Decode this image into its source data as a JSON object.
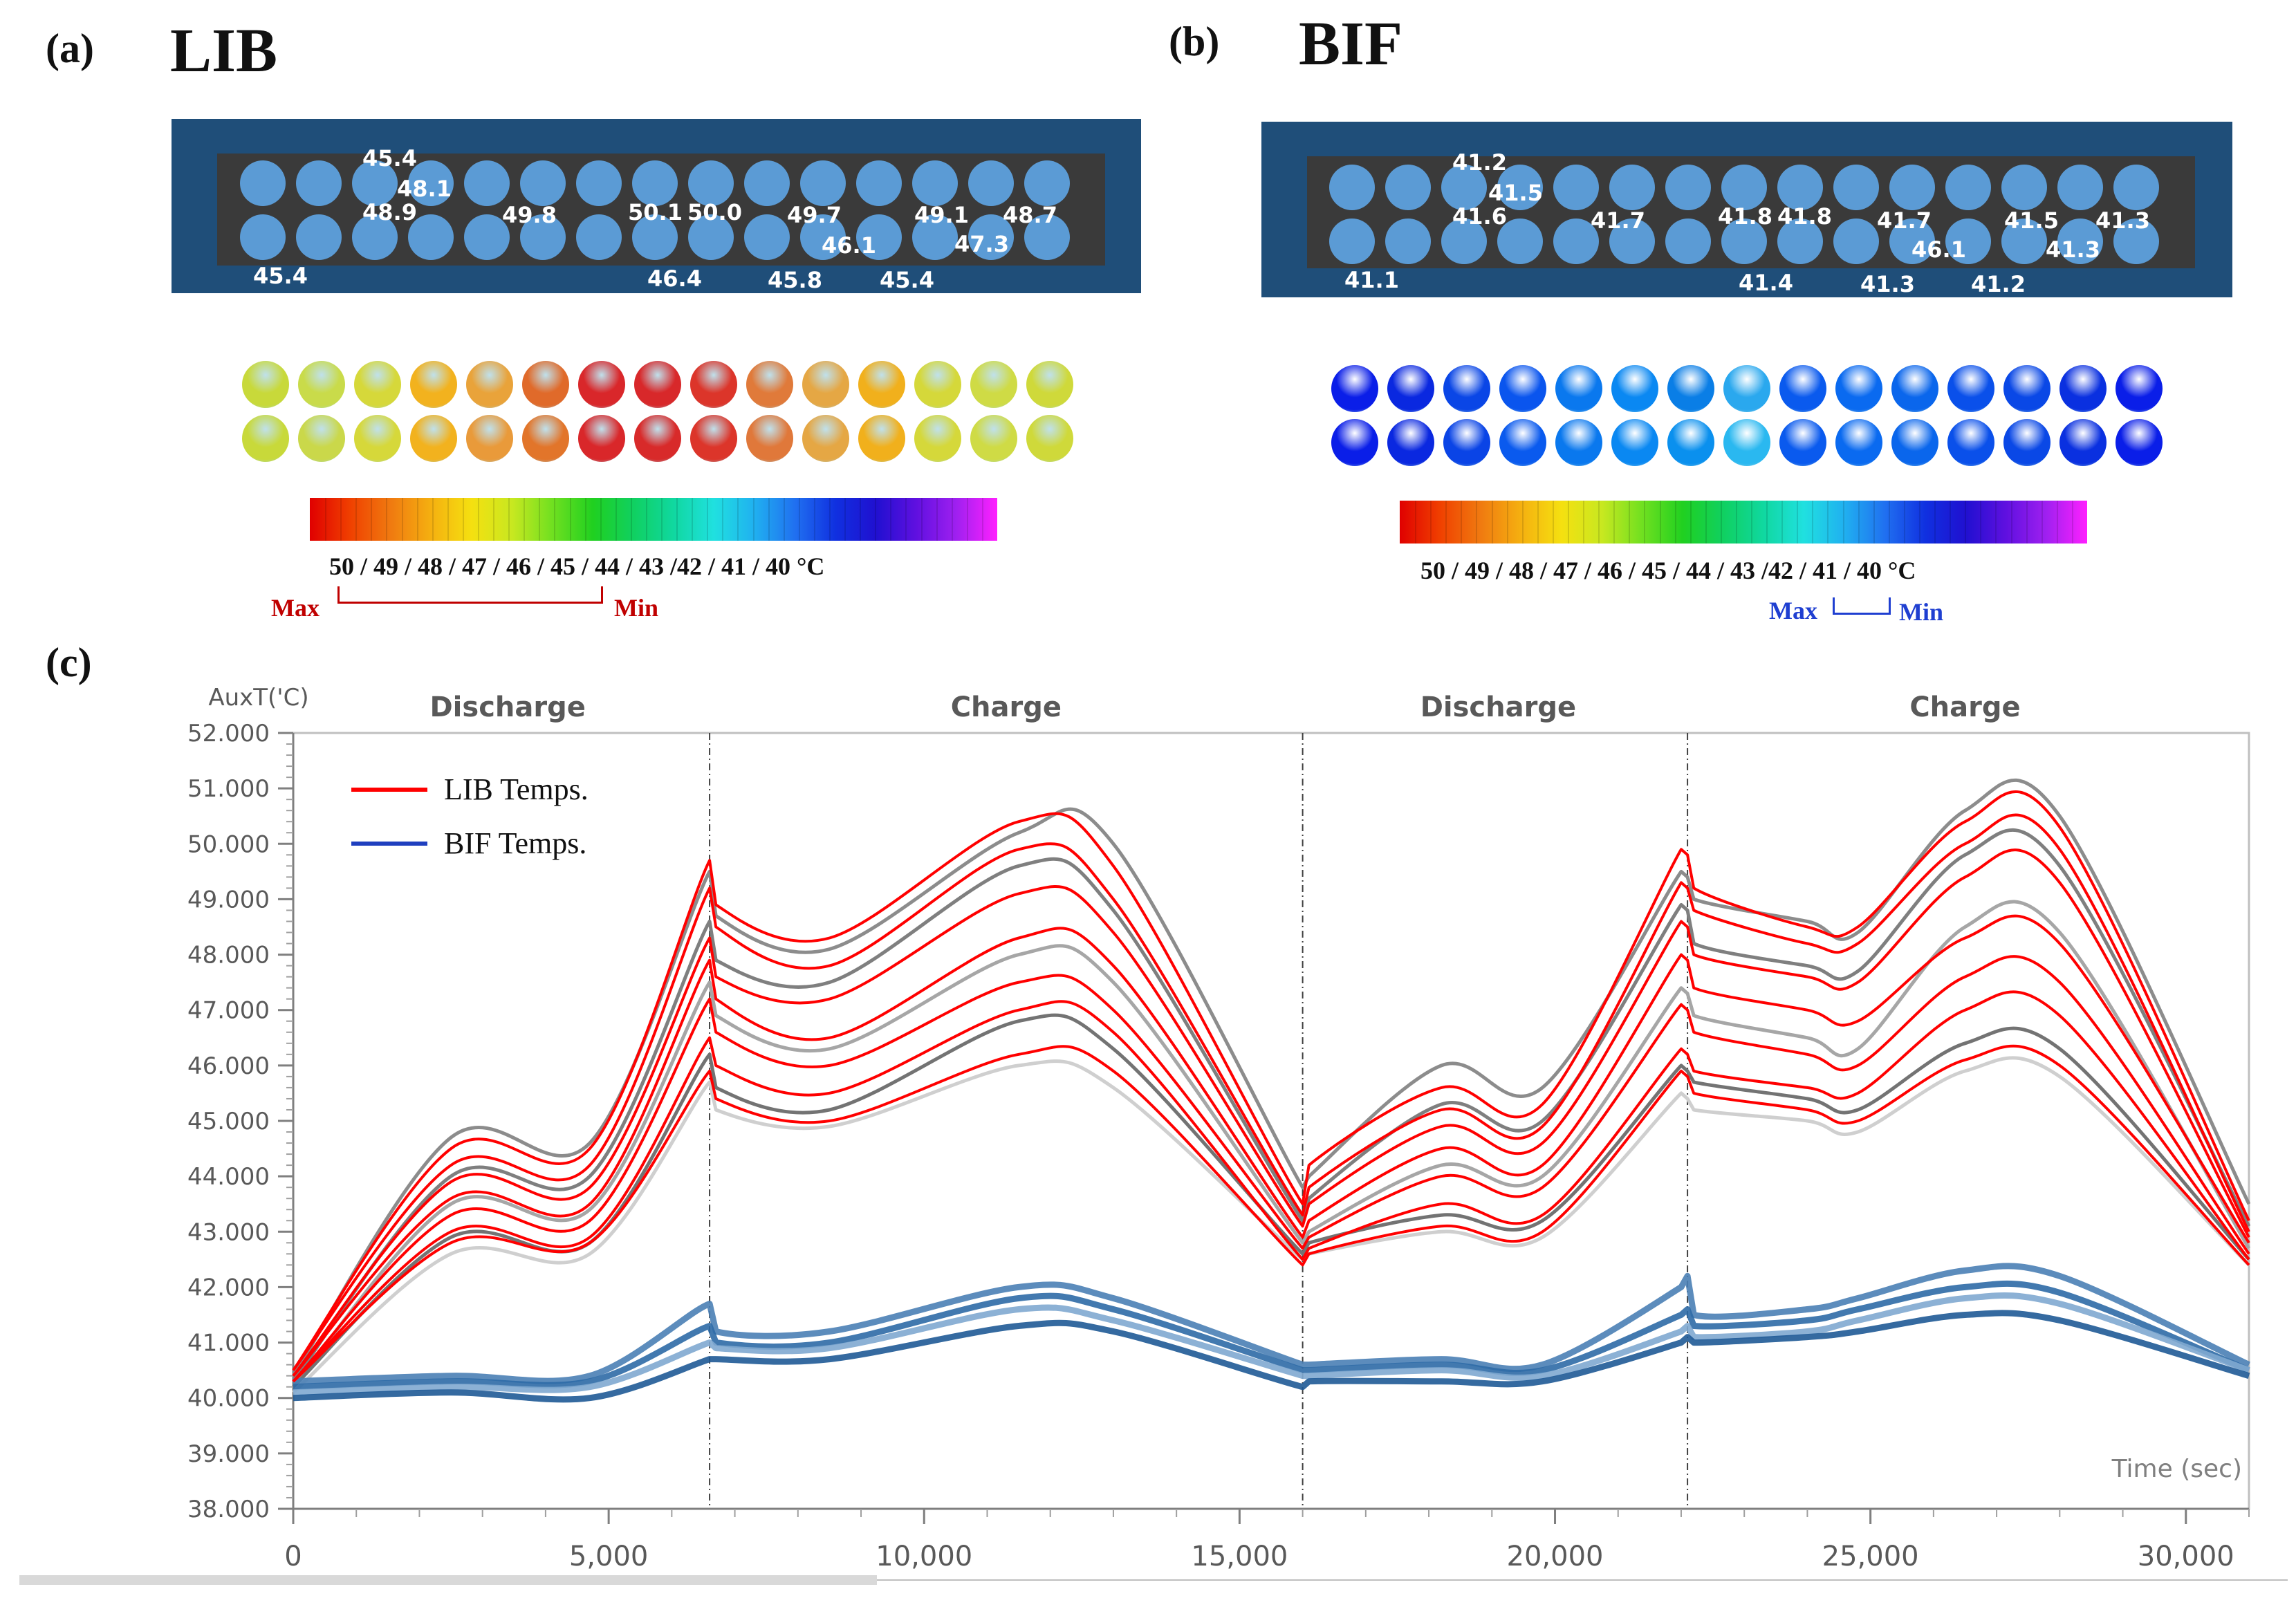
{
  "panel_a": {
    "label": "(a)",
    "title": "LIB",
    "cell_labels": [
      "45.4",
      "48.1",
      "48.9",
      "49.8",
      "50.1",
      "50.0",
      "49.7",
      "46.1",
      "49.1",
      "47.3",
      "48.7",
      "45.4",
      "46.4",
      "45.8",
      "45.4"
    ],
    "sim_colors_row1": [
      "#c8d93a",
      "#c9db4a",
      "#d6d83a",
      "#f2b21e",
      "#e9a33a",
      "#e06a2a",
      "#d9272a",
      "#d8282a",
      "#dc352a",
      "#e07a3a",
      "#e5a744",
      "#f1b01c",
      "#d5d83a",
      "#cfdb45",
      "#cfd93a"
    ],
    "sim_colors_row2": [
      "#c8d93a",
      "#cad84a",
      "#d6d83a",
      "#f2b21e",
      "#e99a3a",
      "#e2752a",
      "#d9272a",
      "#d82a2a",
      "#dc352a",
      "#e0783a",
      "#e5a744",
      "#f1b01c",
      "#d5d83a",
      "#cfdb45",
      "#cfd93a"
    ],
    "scale": "50 / 49 / 48 / 47 / 46 / 45 / 44 / 43 /42 / 41 / 40 °C",
    "max_label": "Max",
    "min_label": "Min",
    "mm_color": "#c00000"
  },
  "panel_b": {
    "label": "(b)",
    "title": "BIF",
    "cell_labels": [
      "41.2",
      "41.5",
      "41.6",
      "41.7",
      "41.8",
      "41.8",
      "41.7",
      "46.1",
      "41.5",
      "41.3",
      "41.3",
      "41.1",
      "41.4",
      "41.3",
      "41.2"
    ],
    "sim_colors_row1": [
      "#0a1ee8",
      "#0a28e0",
      "#0a46e6",
      "#0a55ee",
      "#0a78ee",
      "#0a88f2",
      "#0a7ee6",
      "#2aa8ee",
      "#0a5aee",
      "#0a6af0",
      "#0a66ec",
      "#0a50ea",
      "#0a48e6",
      "#0a30e0",
      "#0a1ee8"
    ],
    "sim_colors_row2": [
      "#0a1ee8",
      "#0a28e0",
      "#0a44e6",
      "#0a5aee",
      "#0a78ee",
      "#0a88f2",
      "#0a90ee",
      "#2ab8f0",
      "#0a5aee",
      "#0a6af0",
      "#0a66ec",
      "#0a50ea",
      "#0a48e6",
      "#0a30e0",
      "#0a1ee8"
    ],
    "scale": "50 / 49 / 48 / 47 / 46 / 45 / 44 / 43 /42 / 41 / 40 °C",
    "max_label": "Max",
    "min_label": "Min",
    "mm_color": "#1f3fd1"
  },
  "panel_c_label": "(c)",
  "chart_data": {
    "type": "line",
    "ylabel": "AuxT('C)",
    "xlabel": "Time (sec)",
    "xlim": [
      0,
      31000
    ],
    "ylim": [
      38,
      52
    ],
    "x_ticks": [
      0,
      5000,
      10000,
      15000,
      20000,
      25000,
      30000
    ],
    "x_tick_labels": [
      "0",
      "5,000",
      "10,000",
      "15,000",
      "20,000",
      "25,000",
      "30,000"
    ],
    "y_ticks": [
      38,
      39,
      40,
      41,
      42,
      43,
      44,
      45,
      46,
      47,
      48,
      49,
      50,
      51,
      52
    ],
    "y_tick_labels": [
      "38.000",
      "39.000",
      "40.000",
      "41.000",
      "42.000",
      "43.000",
      "44.000",
      "45.000",
      "46.000",
      "47.000",
      "48.000",
      "49.000",
      "50.000",
      "51.000",
      "52.000"
    ],
    "phase_boundaries": [
      6600,
      16000,
      22100
    ],
    "phases": [
      {
        "label": "Discharge",
        "x": 3400
      },
      {
        "label": "Charge",
        "x": 11300
      },
      {
        "label": "Discharge",
        "x": 19100
      },
      {
        "label": "Charge",
        "x": 26500
      }
    ],
    "legend": [
      {
        "label": "LIB Temps.",
        "color": "#ff0000"
      },
      {
        "label": "BIF Temps.",
        "color": "#1f3fbf"
      }
    ],
    "x": [
      0,
      2500,
      4700,
      6600,
      6700,
      8500,
      11500,
      13000,
      16000,
      16100,
      18200,
      19800,
      22000,
      22100,
      22200,
      24000,
      24800,
      26500,
      28000,
      31000
    ],
    "lib_series": [
      {
        "name": "LIB max",
        "values": [
          40.5,
          44.5,
          44.5,
          49.7,
          48.9,
          48.3,
          50.4,
          49.6,
          43.5,
          44.2,
          45.6,
          45.3,
          49.9,
          49.8,
          49.2,
          48.5,
          48.5,
          50.4,
          50.3,
          43.2
        ]
      },
      {
        "name": "LIB 2",
        "values": [
          40.5,
          44.2,
          44.2,
          49.2,
          48.5,
          47.8,
          49.9,
          49.0,
          43.3,
          43.8,
          45.2,
          44.9,
          49.3,
          49.2,
          48.8,
          48.2,
          48.2,
          50.0,
          49.9,
          43.0
        ]
      },
      {
        "name": "LIB 3",
        "values": [
          40.4,
          43.9,
          43.8,
          48.3,
          47.6,
          47.2,
          49.1,
          48.4,
          43.1,
          43.5,
          44.9,
          44.6,
          48.6,
          48.5,
          48.0,
          47.6,
          47.5,
          49.4,
          49.3,
          42.9
        ]
      },
      {
        "name": "LIB 4",
        "values": [
          40.4,
          43.6,
          43.5,
          47.9,
          47.2,
          46.5,
          48.3,
          47.8,
          42.9,
          43.2,
          44.5,
          44.2,
          48.0,
          47.9,
          47.4,
          47.0,
          46.8,
          48.3,
          48.2,
          42.8
        ]
      },
      {
        "name": "LIB 5",
        "values": [
          40.3,
          43.3,
          43.2,
          47.2,
          46.6,
          46.0,
          47.5,
          47.0,
          42.7,
          42.9,
          44.0,
          43.8,
          47.1,
          47.0,
          46.6,
          46.2,
          46.0,
          47.6,
          47.5,
          42.6
        ]
      },
      {
        "name": "LIB 6",
        "values": [
          40.3,
          43.0,
          42.9,
          46.5,
          46.0,
          45.5,
          47.0,
          46.6,
          42.5,
          42.7,
          43.5,
          43.3,
          46.3,
          46.2,
          45.9,
          45.6,
          45.5,
          47.0,
          46.9,
          42.5
        ]
      },
      {
        "name": "LIB min",
        "values": [
          40.3,
          42.8,
          42.8,
          45.9,
          45.4,
          45.0,
          46.2,
          45.9,
          42.4,
          42.6,
          43.1,
          43.0,
          45.9,
          45.8,
          45.5,
          45.2,
          45.0,
          46.1,
          46.0,
          42.4
        ]
      }
    ],
    "bif_series": [
      {
        "name": "BIF max",
        "values": [
          40.3,
          40.4,
          40.4,
          41.7,
          41.2,
          41.2,
          42.0,
          41.8,
          40.6,
          40.6,
          40.7,
          40.6,
          42.0,
          42.2,
          41.5,
          41.6,
          41.8,
          42.3,
          42.2,
          40.6
        ]
      },
      {
        "name": "BIF 2",
        "values": [
          40.2,
          40.3,
          40.3,
          41.3,
          41.0,
          41.0,
          41.8,
          41.6,
          40.5,
          40.5,
          40.6,
          40.5,
          41.5,
          41.6,
          41.3,
          41.4,
          41.6,
          42.0,
          41.9,
          40.5
        ]
      },
      {
        "name": "BIF 3",
        "values": [
          40.1,
          40.2,
          40.2,
          41.0,
          40.9,
          40.9,
          41.6,
          41.4,
          40.4,
          40.4,
          40.5,
          40.4,
          41.2,
          41.3,
          41.1,
          41.2,
          41.4,
          41.8,
          41.7,
          40.5
        ]
      },
      {
        "name": "BIF min",
        "values": [
          40.0,
          40.1,
          40.0,
          40.7,
          40.7,
          40.7,
          41.3,
          41.2,
          40.2,
          40.3,
          40.3,
          40.3,
          41.0,
          41.1,
          41.0,
          41.1,
          41.2,
          41.5,
          41.4,
          40.4
        ]
      }
    ],
    "reference_series": [
      {
        "name": "gray 1",
        "values": [
          40.4,
          44.7,
          44.6,
          49.5,
          48.7,
          48.1,
          50.2,
          50.0,
          43.8,
          44.0,
          46.0,
          45.6,
          49.5,
          49.4,
          49.0,
          48.6,
          48.4,
          50.6,
          50.5,
          43.5
        ]
      },
      {
        "name": "gray 2",
        "values": [
          40.3,
          44.0,
          44.0,
          48.6,
          47.9,
          47.5,
          49.6,
          48.8,
          43.2,
          43.6,
          45.3,
          45.0,
          48.9,
          48.8,
          48.2,
          47.8,
          47.7,
          49.8,
          49.6,
          43.1
        ]
      },
      {
        "name": "gray 3",
        "values": [
          40.2,
          43.5,
          43.4,
          47.5,
          46.9,
          46.3,
          48.0,
          47.5,
          42.8,
          43.0,
          44.2,
          44.0,
          47.4,
          47.3,
          46.9,
          46.5,
          46.3,
          48.5,
          48.4,
          42.7
        ]
      },
      {
        "name": "gray 4",
        "values": [
          40.2,
          42.9,
          42.8,
          46.2,
          45.6,
          45.2,
          46.8,
          46.3,
          42.6,
          42.8,
          43.3,
          43.2,
          46.0,
          45.9,
          45.7,
          45.4,
          45.2,
          46.4,
          46.3,
          42.5
        ]
      },
      {
        "name": "gray 5",
        "values": [
          40.1,
          42.6,
          42.6,
          45.7,
          45.2,
          44.9,
          46.0,
          45.6,
          42.5,
          42.6,
          43.0,
          42.9,
          45.5,
          45.4,
          45.2,
          45.0,
          44.8,
          45.9,
          45.8,
          42.4
        ]
      }
    ]
  }
}
